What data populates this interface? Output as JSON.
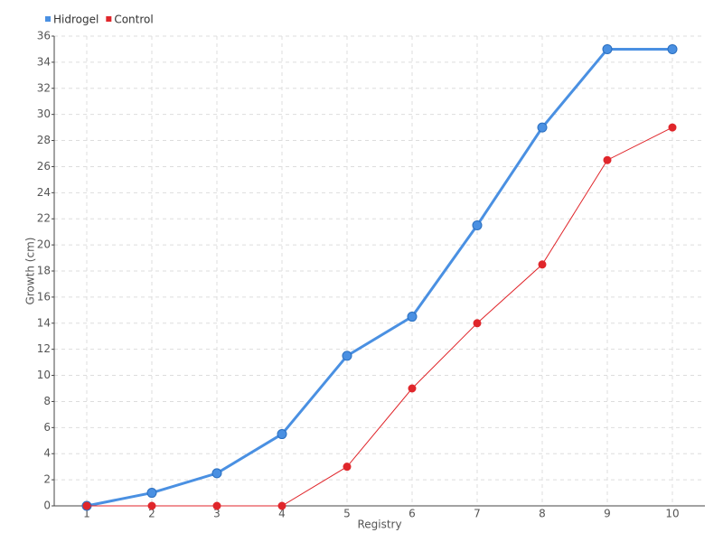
{
  "chart_data": {
    "type": "line",
    "x_label": "Registry",
    "y_label": "Growth (cm)",
    "categories": [
      "1",
      "2",
      "3",
      "4",
      "5",
      "6",
      "7",
      "8",
      "9",
      "10"
    ],
    "series": [
      {
        "name": "Hidrogel",
        "color": "#4a90e2",
        "values": [
          0,
          1,
          2.5,
          5.5,
          11.5,
          14.5,
          21.5,
          29,
          35,
          35
        ]
      },
      {
        "name": "Control",
        "color": "#e0262b",
        "values": [
          0,
          0,
          0,
          0,
          3,
          9,
          14,
          18.5,
          26.5,
          29
        ]
      }
    ],
    "ylim": [
      0,
      36
    ],
    "yticks": [
      0,
      2,
      4,
      6,
      8,
      10,
      12,
      14,
      16,
      18,
      20,
      22,
      24,
      26,
      28,
      30,
      32,
      34,
      36
    ],
    "grid": true,
    "legend": "top-left"
  }
}
